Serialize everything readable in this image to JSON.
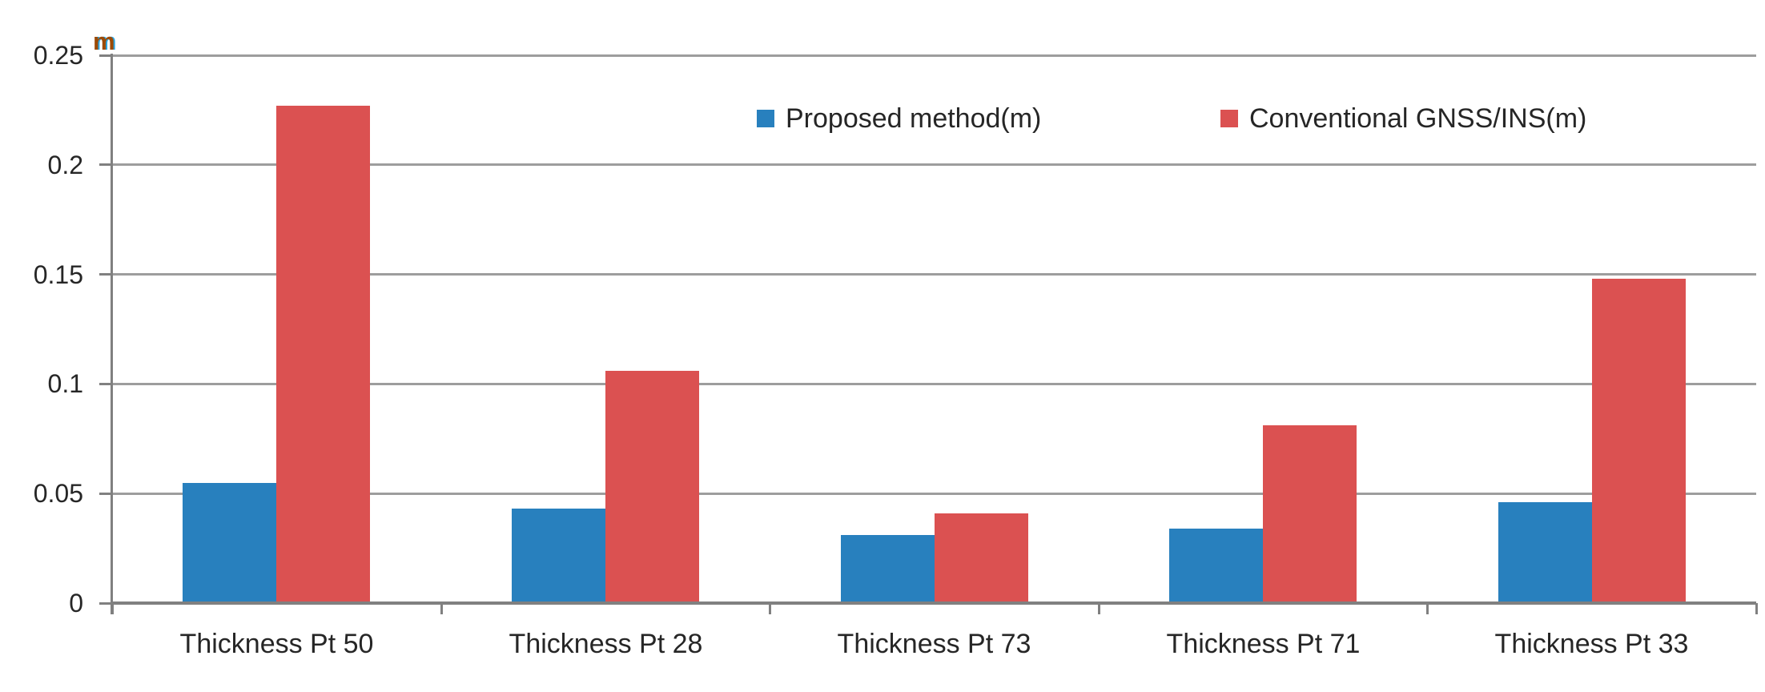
{
  "chart_data": {
    "type": "bar",
    "categories": [
      "Thickness Pt 50",
      "Thickness Pt 28",
      "Thickness Pt 73",
      "Thickness Pt 71",
      "Thickness Pt 33"
    ],
    "series": [
      {
        "name": "Proposed method(m)",
        "color": "#2880BE",
        "values": [
          0.055,
          0.043,
          0.031,
          0.034,
          0.046
        ]
      },
      {
        "name": "Conventional GNSS/INS(m)",
        "color": "#DB5151",
        "values": [
          0.227,
          0.106,
          0.041,
          0.081,
          0.148
        ]
      }
    ],
    "title": "",
    "xlabel": "",
    "ylabel": "m",
    "ylim": [
      0,
      0.25
    ],
    "ytick_interval": 0.05,
    "ytick_labels": [
      "0",
      "0.05",
      "0.1",
      "0.15",
      "0.2",
      "0.25"
    ],
    "grid": true,
    "legend_position": "top-center"
  },
  "colors": {
    "gridline": "#9D9D9D",
    "axis": "#808080",
    "text": "#262626",
    "unit_label_orange": "#9C4A06",
    "unit_label_blue": "#2BA4E0"
  }
}
